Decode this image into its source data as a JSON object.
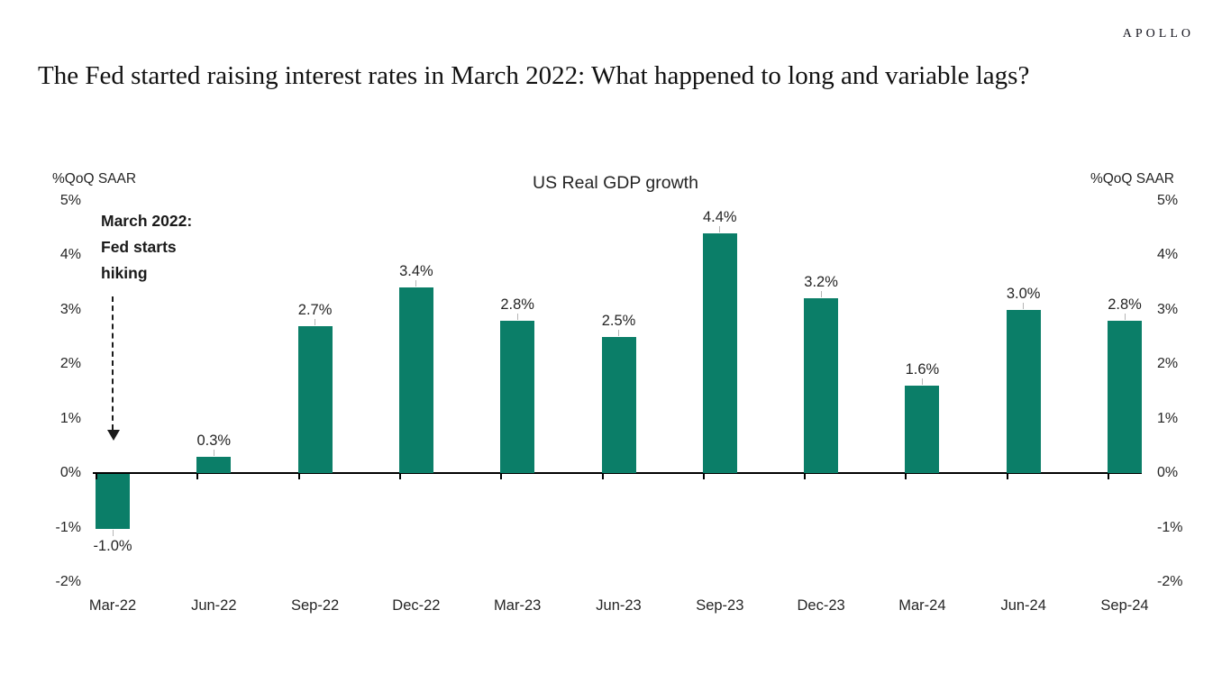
{
  "header": {
    "logo_text": "APOLLO"
  },
  "page_title": "The Fed started raising interest rates in March 2022: What happened to long and variable lags?",
  "chart_data": {
    "type": "bar",
    "title": "US Real GDP growth",
    "unit_label_left": "%QoQ SAAR",
    "unit_label_right": "%QoQ SAAR",
    "categories": [
      "Mar-22",
      "Jun-22",
      "Sep-22",
      "Dec-22",
      "Mar-23",
      "Jun-23",
      "Sep-23",
      "Dec-23",
      "Mar-24",
      "Jun-24",
      "Sep-24"
    ],
    "values": [
      -1.0,
      0.3,
      2.7,
      3.4,
      2.8,
      2.5,
      4.4,
      3.2,
      1.6,
      3.0,
      2.8
    ],
    "data_labels": [
      "-1.0%",
      "0.3%",
      "2.7%",
      "3.4%",
      "2.8%",
      "2.5%",
      "4.4%",
      "3.2%",
      "1.6%",
      "3.0%",
      "2.8%"
    ],
    "y_ticks": [
      5,
      4,
      3,
      2,
      1,
      0,
      -1,
      -2
    ],
    "y_tick_labels": [
      "5%",
      "4%",
      "3%",
      "2%",
      "1%",
      "0%",
      "-1%",
      "-2%"
    ],
    "ylim": [
      -2,
      5
    ],
    "bar_color": "#0b7e68",
    "grid": false,
    "legend_position": "none",
    "annotation": {
      "lines": [
        "March 2022:",
        "Fed starts",
        "hiking"
      ],
      "arrow": "dashed-down"
    }
  }
}
